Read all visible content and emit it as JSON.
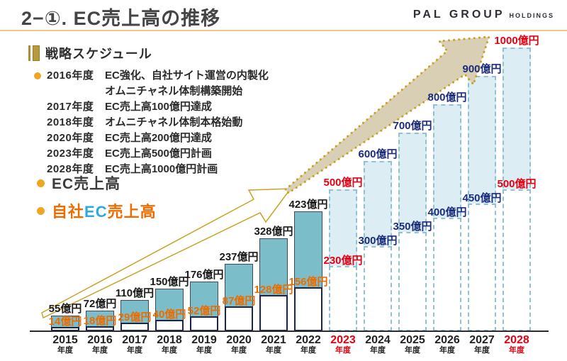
{
  "header": {
    "title": "2−①. EC売上高の推移",
    "logo_main": "PAL GROUP",
    "logo_sub": "HOLDINGS"
  },
  "strategy": {
    "heading": "戦略スケジュール",
    "items": [
      {
        "year": "2016年度",
        "desc": "EC強化、自社サイト運営の内製化",
        "desc2": "オムニチャネル体制構築開始",
        "bullet": true
      },
      {
        "year": "2017年度",
        "desc": "EC売上高100億円達成",
        "bullet": false
      },
      {
        "year": "2018年度",
        "desc": "オムニチャネル体制本格始動",
        "bullet": false
      },
      {
        "year": "2020年度",
        "desc": "EC売上高200億円達成",
        "bullet": false
      },
      {
        "year": "2023年度",
        "desc": "EC売上高500億円計画",
        "bullet": false
      },
      {
        "year": "2028年度",
        "desc": "EC売上高1000億円計画",
        "bullet": false
      }
    ]
  },
  "legend": {
    "ec_label": "EC売上高",
    "own_pre": "自社",
    "own_mid": "EC",
    "own_post": "売上高"
  },
  "colors": {
    "accent_rule": "#ecc988",
    "bar_actual": "#7cbdca",
    "bar_plan_fill": "#dcedf4",
    "bar_plan_border": "#90c2d6",
    "label_actual_total": "#1a1a1a",
    "label_actual_own": "#ed6c00",
    "label_plan": "#1b2d7a",
    "label_red": "#e60012",
    "gold": "#c9a227",
    "arrow_plan_fill": "#d8cfb5"
  },
  "chart_data": {
    "type": "bar",
    "title": "EC売上高の推移",
    "unit": "億円",
    "year_suffix": "年度",
    "categories": [
      "2015",
      "2016",
      "2017",
      "2018",
      "2019",
      "2020",
      "2021",
      "2022",
      "2023",
      "2024",
      "2025",
      "2026",
      "2027",
      "2028"
    ],
    "series": [
      {
        "name": "EC売上高",
        "values": [
          55,
          72,
          110,
          150,
          176,
          237,
          328,
          423,
          500,
          600,
          700,
          800,
          900,
          1000
        ]
      },
      {
        "name": "自社EC売上高",
        "values": [
          14,
          18,
          29,
          40,
          52,
          87,
          128,
          156,
          230,
          300,
          350,
          400,
          450,
          500
        ]
      }
    ],
    "planned_from_index": 8,
    "red_indices": [
      8,
      13
    ],
    "ylim": [
      0,
      1000
    ],
    "grid": false,
    "legend_position": "left"
  }
}
